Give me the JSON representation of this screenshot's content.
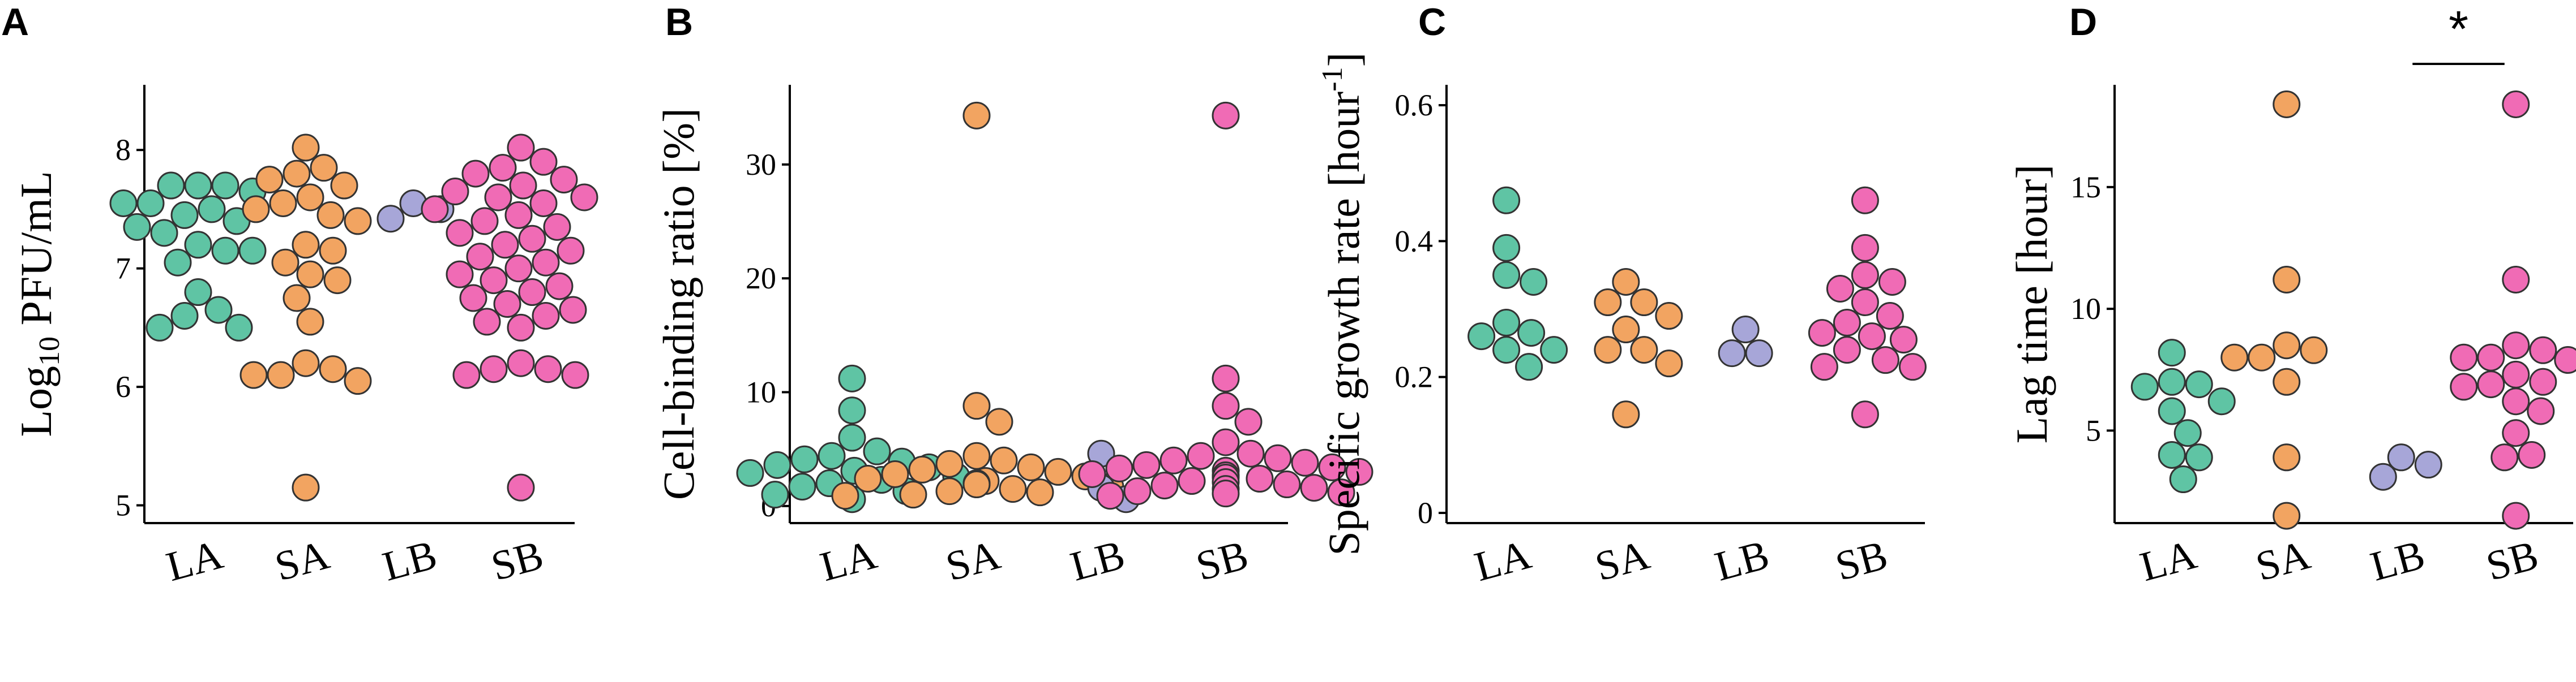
{
  "colors": {
    "LA": "#5fc4a4",
    "SA": "#f2a461",
    "LB": "#a7a6d8",
    "SB": "#f06bb5",
    "stroke": "#333333"
  },
  "chart_data": [
    {
      "type": "scatter",
      "panel": "A",
      "ylabel_parts": [
        "Log",
        "10",
        " PFU/mL"
      ],
      "categories": [
        "LA",
        "SA",
        "LB",
        "SB"
      ],
      "ylim": [
        4.85,
        8.55
      ],
      "yticks": [
        5,
        6,
        7,
        8
      ],
      "ytick_labels": [
        "5",
        "6",
        "7",
        "8"
      ],
      "series": [
        {
          "name": "LA",
          "values": [
            7.7,
            7.7,
            7.7,
            7.65,
            7.55,
            7.55,
            7.5,
            7.45,
            7.4,
            7.35,
            7.3,
            7.2,
            7.15,
            7.15,
            7.05,
            6.8,
            6.65,
            6.6,
            6.5,
            6.5
          ]
        },
        {
          "name": "SA",
          "values": [
            8.02,
            7.85,
            7.8,
            7.75,
            7.7,
            7.6,
            7.55,
            7.5,
            7.45,
            7.4,
            7.2,
            7.15,
            7.05,
            6.95,
            6.9,
            6.75,
            6.55,
            6.2,
            6.15,
            6.1,
            6.1,
            6.05,
            5.15
          ]
        },
        {
          "name": "LB",
          "values": [
            7.5,
            7.55,
            7.42
          ]
        },
        {
          "name": "SB",
          "values": [
            8.02,
            7.9,
            7.85,
            7.8,
            7.75,
            7.7,
            7.65,
            7.6,
            7.6,
            7.55,
            7.5,
            7.45,
            7.4,
            7.35,
            7.3,
            7.25,
            7.2,
            7.15,
            7.1,
            7.05,
            7.0,
            6.95,
            6.9,
            6.85,
            6.8,
            6.75,
            6.7,
            6.65,
            6.6,
            6.55,
            6.5,
            6.2,
            6.15,
            6.15,
            6.1,
            6.1,
            5.15
          ]
        }
      ]
    },
    {
      "type": "scatter",
      "panel": "B",
      "ylabel": "Cell-binding ratio [%]",
      "categories": [
        "LA",
        "SA",
        "LB",
        "SB"
      ],
      "ylim": [
        -1.5,
        37
      ],
      "yticks": [
        0,
        10,
        20,
        30
      ],
      "ytick_labels": [
        "0",
        "10",
        "20",
        "30"
      ],
      "series": [
        {
          "name": "LA",
          "values": [
            11.2,
            8.4,
            6.0,
            4.8,
            4.4,
            4.1,
            3.9,
            3.6,
            3.4,
            3.1,
            2.9,
            2.6,
            2.3,
            2.0,
            1.7,
            1.3,
            1.0,
            0.6
          ]
        },
        {
          "name": "SA",
          "values": [
            34.3,
            8.8,
            7.4,
            4.4,
            4.0,
            3.7,
            3.4,
            3.2,
            3.0,
            2.8,
            2.6,
            2.4,
            2.2,
            2.0,
            1.9,
            1.7,
            1.5,
            1.3,
            1.2,
            1.0,
            0.9
          ]
        },
        {
          "name": "LB",
          "values": [
            4.6,
            1.6,
            0.6
          ]
        },
        {
          "name": "SB",
          "values": [
            34.3,
            11.2,
            8.8,
            7.4,
            5.6,
            4.6,
            4.4,
            4.2,
            4.0,
            3.8,
            3.6,
            3.4,
            3.3,
            3.1,
            3.0,
            2.8,
            2.7,
            2.5,
            2.4,
            2.2,
            2.1,
            1.9,
            1.8,
            1.6,
            1.5,
            1.3,
            1.2,
            1.1,
            0.9
          ]
        }
      ]
    },
    {
      "type": "scatter",
      "panel": "C",
      "ylabel_parts": [
        "Specific growth rate [hour",
        "-1",
        "]"
      ],
      "categories": [
        "LA",
        "SA",
        "LB",
        "SB"
      ],
      "ylim": [
        -0.015,
        0.63
      ],
      "yticks": [
        0,
        0.2,
        0.4,
        0.6
      ],
      "ytick_labels": [
        "0",
        "0.2",
        "0.4",
        "0.6"
      ],
      "series": [
        {
          "name": "LA",
          "values": [
            0.46,
            0.39,
            0.35,
            0.34,
            0.28,
            0.265,
            0.26,
            0.24,
            0.24,
            0.215
          ]
        },
        {
          "name": "SA",
          "values": [
            0.34,
            0.31,
            0.31,
            0.29,
            0.27,
            0.24,
            0.24,
            0.22,
            0.145
          ]
        },
        {
          "name": "LB",
          "values": [
            0.27,
            0.235,
            0.235
          ]
        },
        {
          "name": "SB",
          "values": [
            0.46,
            0.39,
            0.35,
            0.34,
            0.33,
            0.31,
            0.29,
            0.28,
            0.265,
            0.26,
            0.255,
            0.24,
            0.225,
            0.215,
            0.215,
            0.145
          ]
        }
      ]
    },
    {
      "type": "scatter",
      "panel": "D",
      "ylabel": "Lag time [hour]",
      "categories": [
        "LA",
        "SA",
        "LB",
        "SB"
      ],
      "ylim": [
        1.2,
        19.2
      ],
      "yticks": [
        5,
        10,
        15
      ],
      "ytick_labels": [
        "5",
        "10",
        "15"
      ],
      "annotation": {
        "text": "*",
        "between": [
          "LB",
          "SB"
        ]
      },
      "series": [
        {
          "name": "LA",
          "values": [
            8.2,
            7.0,
            6.9,
            6.8,
            6.2,
            5.8,
            4.9,
            4.0,
            3.9,
            3.0
          ]
        },
        {
          "name": "SA",
          "values": [
            18.4,
            11.2,
            8.5,
            8.3,
            8.0,
            8.0,
            7.0,
            3.9,
            1.5
          ]
        },
        {
          "name": "LB",
          "values": [
            3.9,
            3.6,
            3.1
          ]
        },
        {
          "name": "SB",
          "values": [
            18.4,
            11.2,
            8.5,
            8.3,
            8.0,
            8.0,
            7.9,
            7.3,
            7.0,
            6.9,
            6.8,
            6.2,
            5.8,
            4.9,
            4.0,
            3.9,
            1.5
          ]
        }
      ]
    }
  ]
}
